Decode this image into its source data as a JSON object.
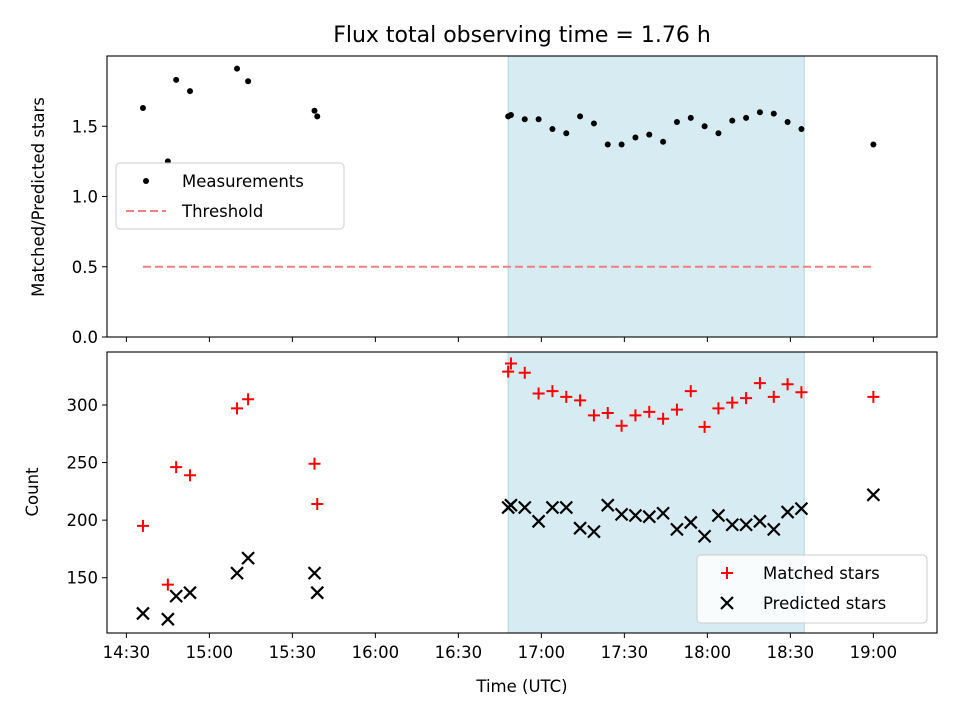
{
  "chart_data": [
    {
      "type": "scatter",
      "title": "Flux total observing time = 1.76 h",
      "ylabel": "Matched/Predicted stars",
      "xlabel": "",
      "xlim": [
        "14:23",
        "19:23"
      ],
      "ylim": [
        0,
        2.0
      ],
      "yticks": [
        "0.0",
        "0.5",
        "1.0",
        "1.5"
      ],
      "highlight_span": [
        "16:48",
        "18:35"
      ],
      "legend_position": "center-left",
      "series": [
        {
          "name": "Measurements",
          "color": "#000000",
          "marker": "dot",
          "points": [
            [
              "14:36",
              1.63
            ],
            [
              "14:45",
              1.25
            ],
            [
              "14:48",
              1.83
            ],
            [
              "14:53",
              1.75
            ],
            [
              "15:10",
              1.91
            ],
            [
              "15:14",
              1.82
            ],
            [
              "15:38",
              1.61
            ],
            [
              "15:39",
              1.57
            ],
            [
              "16:48",
              1.57
            ],
            [
              "16:49",
              1.58
            ],
            [
              "16:54",
              1.55
            ],
            [
              "16:59",
              1.55
            ],
            [
              "17:04",
              1.48
            ],
            [
              "17:09",
              1.45
            ],
            [
              "17:14",
              1.57
            ],
            [
              "17:19",
              1.52
            ],
            [
              "17:24",
              1.37
            ],
            [
              "17:29",
              1.37
            ],
            [
              "17:34",
              1.42
            ],
            [
              "17:39",
              1.44
            ],
            [
              "17:44",
              1.39
            ],
            [
              "17:49",
              1.53
            ],
            [
              "17:54",
              1.56
            ],
            [
              "17:59",
              1.5
            ],
            [
              "18:04",
              1.45
            ],
            [
              "18:09",
              1.54
            ],
            [
              "18:14",
              1.56
            ],
            [
              "18:19",
              1.6
            ],
            [
              "18:24",
              1.59
            ],
            [
              "18:29",
              1.53
            ],
            [
              "18:34",
              1.48
            ],
            [
              "19:00",
              1.37
            ]
          ]
        },
        {
          "name": "Threshold",
          "color": "#f08080",
          "line": "dashed",
          "points": [
            [
              "14:36",
              0.5
            ],
            [
              "19:00",
              0.5
            ]
          ]
        }
      ]
    },
    {
      "type": "scatter",
      "title": "",
      "ylabel": "Count",
      "xlabel": "Time (UTC)",
      "xlim": [
        "14:23",
        "19:23"
      ],
      "ylim": [
        102,
        346
      ],
      "yticks": [
        "150",
        "200",
        "250",
        "300"
      ],
      "xticks": [
        "14:30",
        "15:00",
        "15:30",
        "16:00",
        "16:30",
        "17:00",
        "17:30",
        "18:00",
        "18:30",
        "19:00"
      ],
      "highlight_span": [
        "16:48",
        "18:35"
      ],
      "legend_position": "lower-right",
      "series": [
        {
          "name": "Matched stars",
          "color": "#ff0000",
          "marker": "plus",
          "points": [
            [
              "14:36",
              195
            ],
            [
              "14:45",
              144
            ],
            [
              "14:48",
              246
            ],
            [
              "14:53",
              239
            ],
            [
              "15:10",
              297
            ],
            [
              "15:14",
              305
            ],
            [
              "15:38",
              249
            ],
            [
              "15:39",
              214
            ],
            [
              "16:48",
              329
            ],
            [
              "16:49",
              336
            ],
            [
              "16:54",
              328
            ],
            [
              "16:59",
              310
            ],
            [
              "17:04",
              312
            ],
            [
              "17:09",
              307
            ],
            [
              "17:14",
              304
            ],
            [
              "17:19",
              291
            ],
            [
              "17:24",
              293
            ],
            [
              "17:29",
              282
            ],
            [
              "17:34",
              291
            ],
            [
              "17:39",
              294
            ],
            [
              "17:44",
              288
            ],
            [
              "17:49",
              296
            ],
            [
              "17:54",
              312
            ],
            [
              "17:59",
              281
            ],
            [
              "18:04",
              297
            ],
            [
              "18:09",
              302
            ],
            [
              "18:14",
              306
            ],
            [
              "18:19",
              319
            ],
            [
              "18:24",
              307
            ],
            [
              "18:29",
              318
            ],
            [
              "18:34",
              311
            ],
            [
              "19:00",
              307
            ]
          ]
        },
        {
          "name": "Predicted stars",
          "color": "#000000",
          "marker": "x",
          "points": [
            [
              "14:36",
              119
            ],
            [
              "14:45",
              114
            ],
            [
              "14:48",
              134
            ],
            [
              "14:53",
              137
            ],
            [
              "15:10",
              154
            ],
            [
              "15:14",
              167
            ],
            [
              "15:38",
              154
            ],
            [
              "15:39",
              137
            ],
            [
              "16:48",
              211
            ],
            [
              "16:49",
              213
            ],
            [
              "16:54",
              211
            ],
            [
              "16:59",
              199
            ],
            [
              "17:04",
              211
            ],
            [
              "17:09",
              211
            ],
            [
              "17:14",
              193
            ],
            [
              "17:19",
              190
            ],
            [
              "17:24",
              213
            ],
            [
              "17:29",
              205
            ],
            [
              "17:34",
              204
            ],
            [
              "17:39",
              203
            ],
            [
              "17:44",
              206
            ],
            [
              "17:49",
              192
            ],
            [
              "17:54",
              198
            ],
            [
              "17:59",
              186
            ],
            [
              "18:04",
              204
            ],
            [
              "18:09",
              196
            ],
            [
              "18:14",
              196
            ],
            [
              "18:19",
              199
            ],
            [
              "18:24",
              192
            ],
            [
              "18:29",
              207
            ],
            [
              "18:34",
              210
            ],
            [
              "19:00",
              222
            ]
          ]
        }
      ]
    }
  ]
}
